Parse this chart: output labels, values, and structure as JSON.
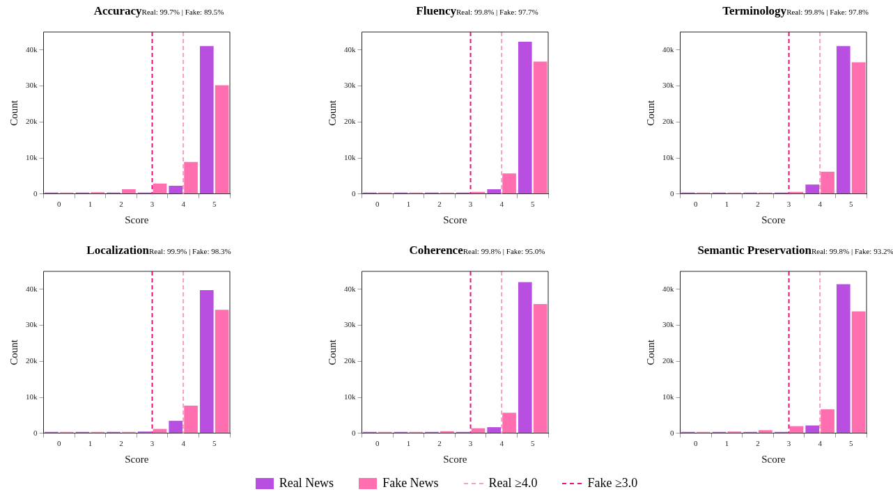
{
  "chart_data": [
    {
      "type": "bar",
      "title": "Accuracy",
      "subtitle": "Real: 99.7% | Fake: 89.5%",
      "xlabel": "Score",
      "ylabel": "Count",
      "categories": [
        "0",
        "1",
        "2",
        "3",
        "4",
        "5"
      ],
      "series": [
        {
          "name": "Real News",
          "color": "#b84fe0",
          "values": [
            0,
            0,
            0,
            0.1,
            2.3,
            41.1
          ]
        },
        {
          "name": "Fake News",
          "color": "#ff6fb0",
          "values": [
            0,
            0.5,
            1.3,
            2.9,
            8.9,
            30.2
          ]
        }
      ],
      "ylim": [
        0,
        45
      ],
      "yticks": [
        {
          "value": 0,
          "label": "0"
        },
        {
          "value": 10,
          "label": "10k"
        },
        {
          "value": 20,
          "label": "20k"
        },
        {
          "value": 30,
          "label": "30k"
        },
        {
          "value": 40,
          "label": "40k"
        }
      ],
      "ref_lines": [
        {
          "axis": "x",
          "value": "4",
          "label": "Real ≥4.0",
          "color": "#f5a0c4",
          "line_style": "dashed"
        },
        {
          "axis": "x",
          "value": "3",
          "label": "Fake ≥3.0",
          "color": "#e8117f",
          "line_style": "dashed"
        }
      ],
      "legend": "bottom"
    },
    {
      "type": "bar",
      "title": "Fluency",
      "subtitle": "Real: 99.8% | Fake: 97.7%",
      "xlabel": "Score",
      "ylabel": "Count",
      "categories": [
        "0",
        "1",
        "2",
        "3",
        "4",
        "5"
      ],
      "series": [
        {
          "color": "#b84fe0",
          "values": [
            0,
            0,
            0,
            0,
            1.3,
            42.3
          ]
        },
        {
          "color": "#ff6fb0",
          "values": [
            0,
            0.1,
            0.2,
            0.6,
            5.7,
            36.8
          ]
        }
      ],
      "ylim": [
        0,
        45
      ],
      "yticks": [
        {
          "value": 0,
          "label": "0"
        },
        {
          "value": 10,
          "label": "10k"
        },
        {
          "value": 20,
          "label": "20k"
        },
        {
          "value": 30,
          "label": "30k"
        },
        {
          "value": 40,
          "label": "40k"
        }
      ],
      "ref_lines": [
        {
          "axis": "x",
          "value": "4",
          "color": "#f5a0c4",
          "line_style": "dashed"
        },
        {
          "axis": "x",
          "value": "3",
          "color": "#e8117f",
          "line_style": "dashed"
        }
      ]
    },
    {
      "type": "bar",
      "title": "Terminology",
      "subtitle": "Real: 99.8% | Fake: 97.8%",
      "xlabel": "Score",
      "ylabel": "Count",
      "categories": [
        "0",
        "1",
        "2",
        "3",
        "4",
        "5"
      ],
      "series": [
        {
          "color": "#b84fe0",
          "values": [
            0,
            0,
            0,
            0,
            2.6,
            41.1
          ]
        },
        {
          "color": "#ff6fb0",
          "values": [
            0,
            0.1,
            0.2,
            0.6,
            6.2,
            36.6
          ]
        }
      ],
      "ylim": [
        0,
        45
      ],
      "yticks": [
        {
          "value": 0,
          "label": "0"
        },
        {
          "value": 10,
          "label": "10k"
        },
        {
          "value": 20,
          "label": "20k"
        },
        {
          "value": 30,
          "label": "30k"
        },
        {
          "value": 40,
          "label": "40k"
        }
      ],
      "ref_lines": [
        {
          "axis": "x",
          "value": "4",
          "color": "#f5a0c4",
          "line_style": "dashed"
        },
        {
          "axis": "x",
          "value": "3",
          "color": "#e8117f",
          "line_style": "dashed"
        }
      ]
    },
    {
      "type": "bar",
      "title": "Localization",
      "subtitle": "Real: 99.9% | Fake: 98.3%",
      "xlabel": "Score",
      "ylabel": "Count",
      "categories": [
        "0",
        "1",
        "2",
        "3",
        "4",
        "5"
      ],
      "series": [
        {
          "color": "#b84fe0",
          "values": [
            0,
            0,
            0,
            0.5,
            3.5,
            39.8
          ]
        },
        {
          "color": "#ff6fb0",
          "values": [
            0,
            0.1,
            0.2,
            1.2,
            7.7,
            34.3
          ]
        }
      ],
      "ylim": [
        0,
        45
      ],
      "yticks": [
        {
          "value": 0,
          "label": "0"
        },
        {
          "value": 10,
          "label": "10k"
        },
        {
          "value": 20,
          "label": "20k"
        },
        {
          "value": 30,
          "label": "30k"
        },
        {
          "value": 40,
          "label": "40k"
        }
      ],
      "ref_lines": [
        {
          "axis": "x",
          "value": "4",
          "color": "#f5a0c4",
          "line_style": "dashed"
        },
        {
          "axis": "x",
          "value": "3",
          "color": "#e8117f",
          "line_style": "dashed"
        }
      ]
    },
    {
      "type": "bar",
      "title": "Coherence",
      "subtitle": "Real: 99.8% | Fake: 95.0%",
      "xlabel": "Score",
      "ylabel": "Count",
      "categories": [
        "0",
        "1",
        "2",
        "3",
        "4",
        "5"
      ],
      "series": [
        {
          "color": "#b84fe0",
          "values": [
            0,
            0,
            0,
            0.1,
            1.7,
            42.0
          ]
        },
        {
          "color": "#ff6fb0",
          "values": [
            0,
            0.3,
            0.6,
            1.4,
            5.7,
            35.9
          ]
        }
      ],
      "ylim": [
        0,
        45
      ],
      "yticks": [
        {
          "value": 0,
          "label": "0"
        },
        {
          "value": 10,
          "label": "10k"
        },
        {
          "value": 20,
          "label": "20k"
        },
        {
          "value": 30,
          "label": "30k"
        },
        {
          "value": 40,
          "label": "40k"
        }
      ],
      "ref_lines": [
        {
          "axis": "x",
          "value": "4",
          "color": "#f5a0c4",
          "line_style": "dashed"
        },
        {
          "axis": "x",
          "value": "3",
          "color": "#e8117f",
          "line_style": "dashed"
        }
      ]
    },
    {
      "type": "bar",
      "title": "Semantic Preservation",
      "subtitle": "Real: 99.8% | Fake: 93.2%",
      "xlabel": "Score",
      "ylabel": "Count",
      "categories": [
        "0",
        "1",
        "2",
        "3",
        "4",
        "5"
      ],
      "series": [
        {
          "color": "#b84fe0",
          "values": [
            0,
            0,
            0,
            0.1,
            2.2,
            41.4
          ]
        },
        {
          "color": "#ff6fb0",
          "values": [
            0,
            0.5,
            0.9,
            2.0,
            6.7,
            33.9
          ]
        }
      ],
      "ylim": [
        0,
        45
      ],
      "yticks": [
        {
          "value": 0,
          "label": "0"
        },
        {
          "value": 10,
          "label": "10k"
        },
        {
          "value": 20,
          "label": "20k"
        },
        {
          "value": 30,
          "label": "30k"
        },
        {
          "value": 40,
          "label": "40k"
        }
      ],
      "ref_lines": [
        {
          "axis": "x",
          "value": "4",
          "color": "#f5a0c4",
          "line_style": "dashed"
        },
        {
          "axis": "x",
          "value": "3",
          "color": "#e8117f",
          "line_style": "dashed"
        }
      ]
    }
  ]
}
